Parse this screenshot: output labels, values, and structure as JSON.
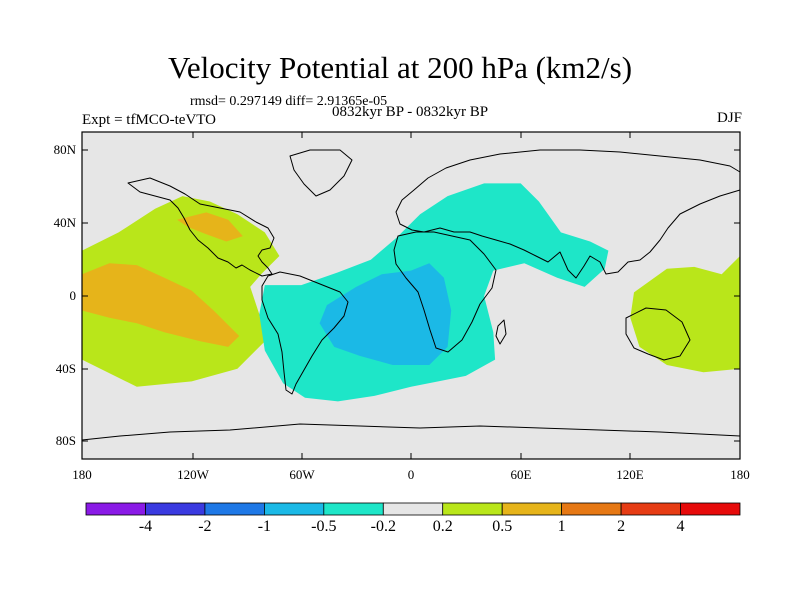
{
  "chart_data": {
    "type": "heatmap",
    "title": "Velocity Potential at 200 hPa (km2/s)",
    "stats_line": "rmsd= 0.297149 diff= 2.91365e-05",
    "left_label": "Expt = tfMCO-teVTO",
    "center_label": "0832kyr BP - 0832kyr BP",
    "right_label": "DJF",
    "x_ticks": [
      "180",
      "120W",
      "60W",
      "0",
      "60E",
      "120E",
      "180"
    ],
    "y_ticks": [
      "80N",
      "40N",
      "0",
      "40S",
      "80S"
    ],
    "xlim": [
      -180,
      180
    ],
    "ylim": [
      -90,
      90
    ],
    "colorbar": {
      "levels": [
        "-4",
        "-2",
        "-1",
        "-0.5",
        "-0.2",
        "0.2",
        "0.5",
        "1",
        "2",
        "4"
      ],
      "colors": [
        "#8a1ae6",
        "#3a3ae0",
        "#1e78e6",
        "#1bb9e6",
        "#1ee6c8",
        "#e6e6e6",
        "#b9e61a",
        "#e6b41a",
        "#e67814",
        "#e63c14",
        "#e60a0a"
      ]
    },
    "regions": [
      {
        "name": "central-pacific-positive",
        "level": "0.2 to 0.5",
        "color": "#b9e61a",
        "points": [
          [
            -180,
            25
          ],
          [
            -160,
            35
          ],
          [
            -140,
            48
          ],
          [
            -125,
            55
          ],
          [
            -110,
            52
          ],
          [
            -95,
            45
          ],
          [
            -80,
            35
          ],
          [
            -72,
            22
          ],
          [
            -82,
            12
          ],
          [
            -88,
            5
          ],
          [
            -83,
            -10
          ],
          [
            -80,
            -25
          ],
          [
            -95,
            -40
          ],
          [
            -120,
            -47
          ],
          [
            -150,
            -50
          ],
          [
            -180,
            -35
          ]
        ]
      },
      {
        "name": "central-pacific-strong",
        "level": "0.5 to 1",
        "color": "#e6b41a",
        "points": [
          [
            -180,
            12
          ],
          [
            -165,
            18
          ],
          [
            -150,
            17
          ],
          [
            -135,
            10
          ],
          [
            -120,
            3
          ],
          [
            -108,
            -8
          ],
          [
            -94,
            -22
          ],
          [
            -100,
            -28
          ],
          [
            -115,
            -25
          ],
          [
            -135,
            -20
          ],
          [
            -150,
            -15
          ],
          [
            -165,
            -12
          ],
          [
            -180,
            -8
          ]
        ]
      },
      {
        "name": "mexico-positive-strong",
        "level": "0.5 to 1",
        "color": "#e6b41a",
        "points": [
          [
            -128,
            42
          ],
          [
            -112,
            46
          ],
          [
            -100,
            42
          ],
          [
            -92,
            33
          ],
          [
            -101,
            30
          ],
          [
            -112,
            34
          ],
          [
            -122,
            38
          ]
        ]
      },
      {
        "name": "atlantic-africa-negative",
        "level": "-0.5 to -0.2",
        "color": "#1ee6c8",
        "points": [
          [
            -80,
            6
          ],
          [
            -60,
            6
          ],
          [
            -40,
            13
          ],
          [
            -22,
            20
          ],
          [
            -8,
            32
          ],
          [
            5,
            45
          ],
          [
            20,
            55
          ],
          [
            40,
            62
          ],
          [
            60,
            62
          ],
          [
            70,
            52
          ],
          [
            82,
            35
          ],
          [
            98,
            30
          ],
          [
            108,
            25
          ],
          [
            106,
            15
          ],
          [
            95,
            5
          ],
          [
            80,
            10
          ],
          [
            62,
            18
          ],
          [
            45,
            14
          ],
          [
            40,
            0
          ],
          [
            45,
            -20
          ],
          [
            46,
            -35
          ],
          [
            30,
            -44
          ],
          [
            0,
            -50
          ],
          [
            -20,
            -55
          ],
          [
            -40,
            -58
          ],
          [
            -58,
            -56
          ],
          [
            -70,
            -48
          ],
          [
            -80,
            -30
          ],
          [
            -83,
            -10
          ]
        ]
      },
      {
        "name": "south-america-negative-strong",
        "level": "-1 to -0.5",
        "color": "#1bb9e6",
        "points": [
          [
            -46,
            -5
          ],
          [
            -30,
            5
          ],
          [
            -16,
            12
          ],
          [
            0,
            14
          ],
          [
            10,
            18
          ],
          [
            18,
            10
          ],
          [
            22,
            -8
          ],
          [
            20,
            -28
          ],
          [
            10,
            -38
          ],
          [
            -10,
            -38
          ],
          [
            -28,
            -33
          ],
          [
            -42,
            -28
          ],
          [
            -50,
            -15
          ]
        ]
      },
      {
        "name": "west-pacific-positive",
        "level": "0.2 to 0.5",
        "color": "#b9e61a",
        "points": [
          [
            140,
            15
          ],
          [
            155,
            16
          ],
          [
            170,
            12
          ],
          [
            180,
            22
          ],
          [
            180,
            -40
          ],
          [
            160,
            -42
          ],
          [
            140,
            -38
          ],
          [
            125,
            -28
          ],
          [
            120,
            -12
          ],
          [
            122,
            2
          ]
        ]
      }
    ]
  }
}
